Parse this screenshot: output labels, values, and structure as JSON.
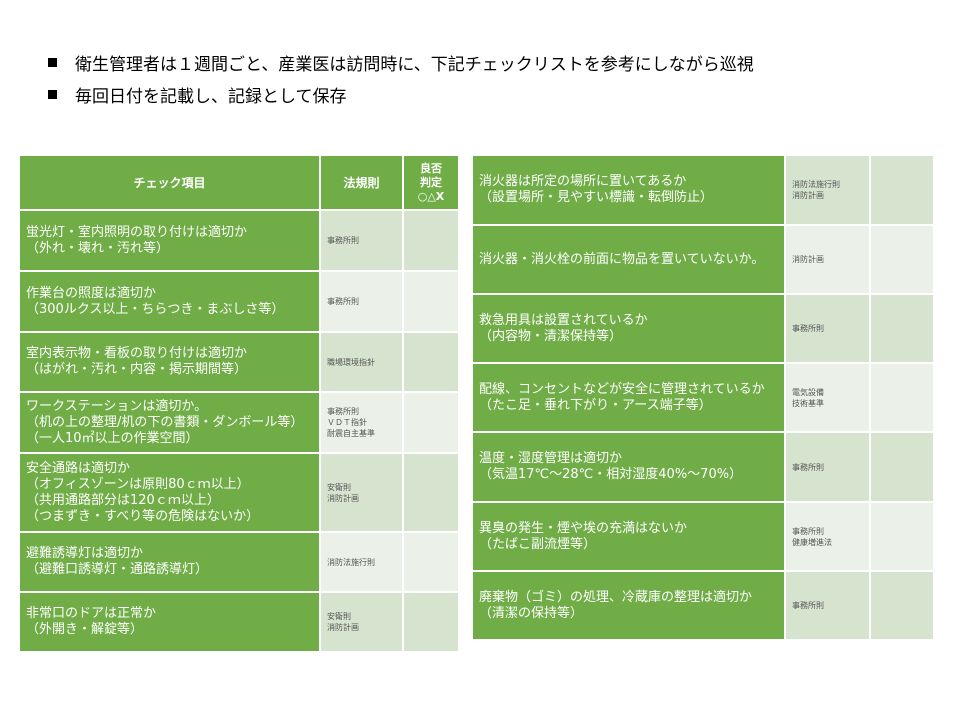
{
  "bullets": [
    "衛生管理者は１週間ごと、産業医は訪問時に、下記チェックリストを参考にしながら巡視",
    "毎回日付を記載し、記録として保存"
  ],
  "header": {
    "item": "チェック項目",
    "law": "法規則",
    "judge": "良否\n判定\n○△X"
  },
  "left_rows": [
    {
      "item": "蛍光灯・室内照明の取り付けは適切か\n（外れ・壊れ・汚れ等）",
      "law": "事務所則"
    },
    {
      "item": "作業台の照度は適切か\n（300ルクス以上・ちらつき・まぶしさ等）",
      "law": "事務所則"
    },
    {
      "item": "室内表示物・看板の取り付けは適切か\n（はがれ・汚れ・内容・掲示期間等）",
      "law": "職場環境指針"
    },
    {
      "item": "ワークステーションは適切か。\n（机の上の整理/机の下の書類・ダンボール等）\n（一人10㎡以上の作業空間）",
      "law": "事務所則\nＶＤＴ指針\n耐震自主基準"
    },
    {
      "item": "安全通路は適切か\n（オフィスゾーンは原則80ｃｍ以上）\n（共用通路部分は120ｃｍ以上）\n（つまずき・すべり等の危険はないか）",
      "law": "安衛則\n消防計画"
    },
    {
      "item": "避難誘導灯は適切か\n（避難口誘導灯・通路誘導灯）",
      "law": "消防法施行則"
    },
    {
      "item": "非常口のドアは正常か\n（外開き・解錠等）",
      "law": "安衛則\n消防計画"
    }
  ],
  "right_rows": [
    {
      "item": "消火器は所定の場所に置いてあるか\n（設置場所・見やすい標識・転倒防止）",
      "law": "消防法施行則\n消防計画"
    },
    {
      "item": "消火器・消火栓の前面に物品を置いていないか。",
      "law": "消防計画"
    },
    {
      "item": "救急用具は設置されているか\n（内容物・清潔保持等）",
      "law": "事務所則"
    },
    {
      "item": "配線、コンセントなどが安全に管理されているか\n（たこ足・垂れ下がり・アース端子等）",
      "law": "電気設備\n技術基準"
    },
    {
      "item": "温度・湿度管理は適切か\n（気温17℃～28℃・相対湿度40%～70%）",
      "law": "事務所則"
    },
    {
      "item": "異臭の発生・煙や埃の充満はないか\n（たばこ副流煙等）",
      "law": "事務所則\n健康増進法"
    },
    {
      "item": "廃棄物（ゴミ）の処理、冷蔵庫の整理は適切か\n（清潔の保持等）",
      "law": "事務所則"
    }
  ],
  "colors": {
    "green": "#70ad47",
    "law_dark": "#d6e3cf",
    "law_light": "#ebf1e8"
  }
}
